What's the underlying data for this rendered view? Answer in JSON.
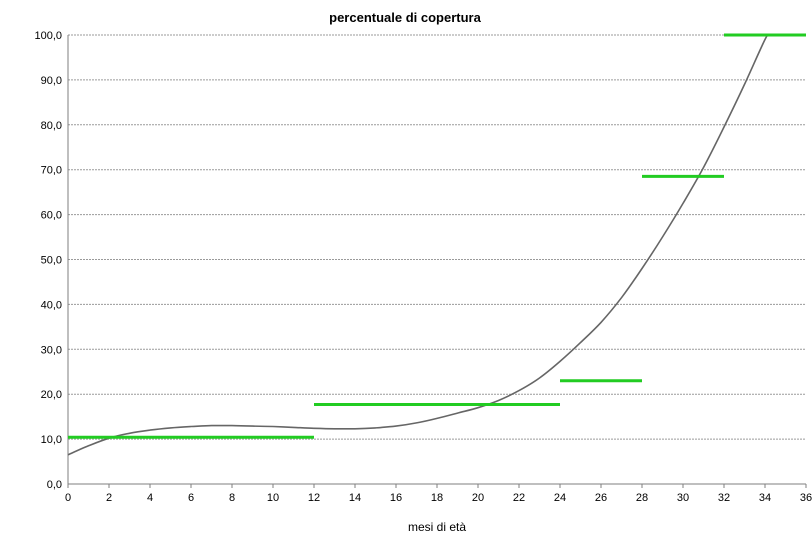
{
  "chart_data": {
    "type": "line",
    "title": "percentuale di copertura",
    "xlabel": "mesi di età",
    "ylabel": "",
    "xlim": [
      0,
      36
    ],
    "ylim": [
      0,
      100
    ],
    "x_ticks": [
      "0",
      "2",
      "4",
      "6",
      "8",
      "10",
      "12",
      "14",
      "16",
      "18",
      "20",
      "22",
      "24",
      "26",
      "28",
      "30",
      "32",
      "34",
      "36"
    ],
    "y_ticks": [
      "0,0",
      "10,0",
      "20,0",
      "30,0",
      "40,0",
      "50,0",
      "60,0",
      "70,0",
      "80,0",
      "90,0",
      "100,0"
    ],
    "grid": true,
    "colors": {
      "curve": "#666666",
      "steps": "#22cc22",
      "grid": "#9a9a9a"
    },
    "series": [
      {
        "type": "line",
        "points": [
          [
            0,
            6.5
          ],
          [
            1,
            8.5
          ],
          [
            2,
            10.2
          ],
          [
            3,
            11.3
          ],
          [
            4,
            12.0
          ],
          [
            5,
            12.5
          ],
          [
            6,
            12.8
          ],
          [
            7,
            13.0
          ],
          [
            8,
            13.0
          ],
          [
            9,
            12.9
          ],
          [
            10,
            12.8
          ],
          [
            11,
            12.6
          ],
          [
            12,
            12.4
          ],
          [
            13,
            12.3
          ],
          [
            14,
            12.3
          ],
          [
            15,
            12.5
          ],
          [
            16,
            12.9
          ],
          [
            17,
            13.6
          ],
          [
            18,
            14.6
          ],
          [
            19,
            15.8
          ],
          [
            20,
            17.0
          ],
          [
            21,
            18.6
          ],
          [
            22,
            20.8
          ],
          [
            23,
            23.6
          ],
          [
            24,
            27.3
          ],
          [
            25,
            31.5
          ],
          [
            26,
            36.0
          ],
          [
            27,
            41.5
          ],
          [
            28,
            48.0
          ],
          [
            29,
            55.0
          ],
          [
            30,
            62.5
          ],
          [
            31,
            70.5
          ],
          [
            32,
            79.5
          ],
          [
            33,
            89.0
          ],
          [
            34,
            99.0
          ],
          [
            34.2,
            100
          ]
        ]
      },
      {
        "type": "step",
        "segments": [
          {
            "x": [
              0,
              12
            ],
            "y": 10.4
          },
          {
            "x": [
              12,
              24
            ],
            "y": 17.7
          },
          {
            "x": [
              24,
              28
            ],
            "y": 23.0
          },
          {
            "x": [
              28,
              32
            ],
            "y": 68.5
          },
          {
            "x": [
              32,
              36
            ],
            "y": 100.0
          }
        ]
      }
    ]
  }
}
